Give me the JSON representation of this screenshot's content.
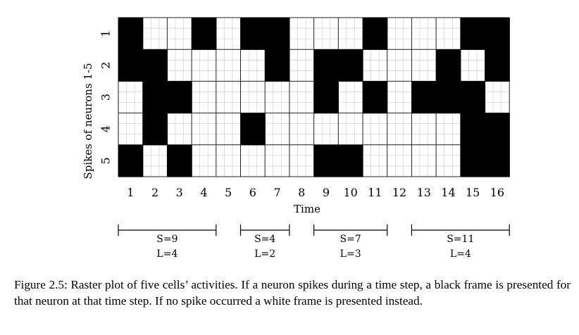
{
  "chart_data": {
    "type": "heatmap",
    "title": "",
    "xlabel": "Time",
    "ylabel": "Spikes of neurons 1-5",
    "x_ticks": [
      "1",
      "2",
      "3",
      "4",
      "5",
      "6",
      "7",
      "8",
      "9",
      "10",
      "11",
      "12",
      "13",
      "14",
      "15",
      "16"
    ],
    "y_ticks": [
      "1",
      "2",
      "3",
      "4",
      "5"
    ],
    "grid": true,
    "colors": {
      "spike": "#000000",
      "no_spike": "#ffffff",
      "grid": "#c8c8c8"
    },
    "rows": [
      [
        1,
        0,
        0,
        1,
        0,
        1,
        1,
        0,
        0,
        0,
        1,
        0,
        0,
        0,
        1,
        1
      ],
      [
        1,
        1,
        0,
        0,
        0,
        0,
        1,
        0,
        1,
        1,
        0,
        0,
        0,
        1,
        0,
        1
      ],
      [
        0,
        1,
        1,
        0,
        0,
        0,
        0,
        0,
        1,
        0,
        1,
        0,
        1,
        1,
        1,
        0
      ],
      [
        0,
        1,
        0,
        0,
        0,
        1,
        0,
        0,
        0,
        0,
        0,
        0,
        0,
        0,
        1,
        1
      ],
      [
        1,
        0,
        1,
        0,
        0,
        0,
        0,
        0,
        1,
        1,
        0,
        0,
        0,
        0,
        1,
        1
      ]
    ],
    "brackets": [
      {
        "start": 1,
        "end": 4,
        "s_label": "S=9",
        "l_label": "L=4"
      },
      {
        "start": 6,
        "end": 7,
        "s_label": "S=4",
        "l_label": "L=2"
      },
      {
        "start": 9,
        "end": 11,
        "s_label": "S=7",
        "l_label": "L=3"
      },
      {
        "start": 13,
        "end": 16,
        "s_label": "S=11",
        "l_label": "L=4"
      }
    ]
  },
  "caption": "Figure 2.5: Raster plot of five cells’ activities. If a neuron spikes during a time step, a black frame is presented for that neuron at that time step. If no spike occurred a white frame is presented instead."
}
